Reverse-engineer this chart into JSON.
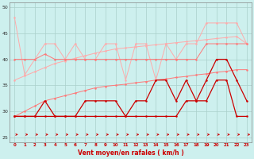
{
  "background_color": "#cdf0ee",
  "grid_color": "#aacfcb",
  "x_values": [
    0,
    1,
    2,
    3,
    4,
    5,
    6,
    7,
    8,
    9,
    10,
    11,
    12,
    13,
    14,
    15,
    16,
    17,
    18,
    19,
    20,
    21,
    22,
    23
  ],
  "x_labels": [
    "0",
    "1",
    "2",
    "3",
    "4",
    "5",
    "6",
    "7",
    "8",
    "9",
    "10",
    "11",
    "12",
    "13",
    "14",
    "15",
    "16",
    "17",
    "18",
    "19",
    "20",
    "21",
    "22",
    "23"
  ],
  "ylim": [
    24,
    51
  ],
  "yticks": [
    25,
    30,
    35,
    40,
    45,
    50
  ],
  "xlabel": "Vent moyen/en rafales ( km/h )",
  "c_light": "#ffaaaa",
  "c_med": "#ff7777",
  "c_dark": "#cc0000",
  "line_light_jagged": [
    48,
    37,
    40,
    43,
    43,
    40,
    43,
    40,
    40,
    43,
    43,
    36,
    43,
    43,
    36,
    43,
    40,
    43,
    43,
    47,
    47,
    47,
    47,
    43
  ],
  "line_light_trend": [
    36,
    36.8,
    37.6,
    38.4,
    39.2,
    39.7,
    40.2,
    40.7,
    41.2,
    41.6,
    42.0,
    42.2,
    42.4,
    42.6,
    42.8,
    43.0,
    43.2,
    43.4,
    43.6,
    43.8,
    44.0,
    44.2,
    44.4,
    43.0
  ],
  "line_med_jagged": [
    40,
    40,
    40,
    41,
    40,
    40,
    40,
    40,
    40,
    40,
    40,
    40,
    40,
    40,
    40,
    40,
    40,
    40,
    40,
    43,
    43,
    43,
    43,
    43
  ],
  "line_med_trend": [
    29,
    30,
    31,
    32,
    32.5,
    33,
    33.5,
    34,
    34.5,
    34.8,
    35.0,
    35.2,
    35.5,
    35.7,
    36.0,
    36.2,
    36.5,
    36.7,
    37.0,
    37.2,
    37.5,
    37.7,
    38.0,
    38.0
  ],
  "line_dark_jagged": [
    29,
    29,
    29,
    32,
    29,
    29,
    29,
    32,
    32,
    32,
    32,
    29,
    32,
    32,
    36,
    36,
    32,
    36,
    32,
    36,
    40,
    40,
    36,
    32
  ],
  "line_dark_trend": [
    29,
    29,
    29,
    29,
    29,
    29,
    29,
    29,
    29,
    29,
    29,
    29,
    29,
    29,
    29,
    29,
    29,
    32,
    32,
    32,
    36,
    36,
    29,
    29
  ]
}
